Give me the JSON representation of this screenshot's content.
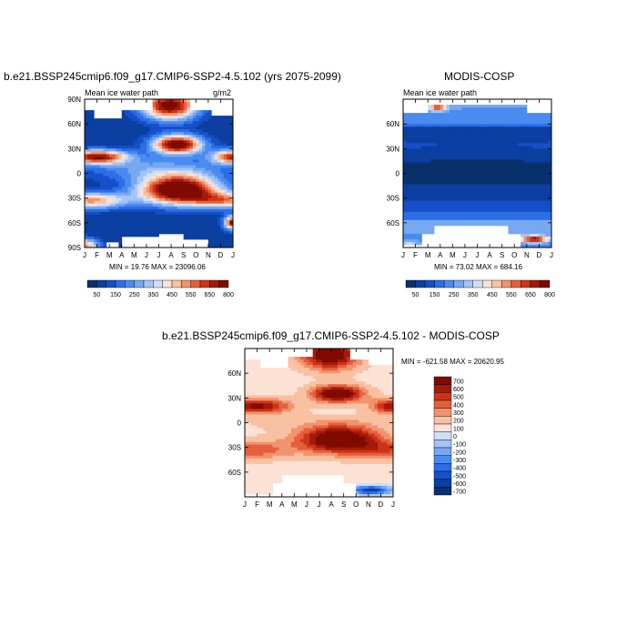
{
  "colors": {
    "palette": [
      "#08306b",
      "#0b3fa0",
      "#1450c8",
      "#2b6ee8",
      "#4a8bf0",
      "#77a8f2",
      "#a4c4f5",
      "#cfdffa",
      "#fbe2d4",
      "#f7c1a2",
      "#f2936d",
      "#e65f3d",
      "#cc3418",
      "#a31a08",
      "#7f0a00"
    ]
  },
  "chart_data": [
    {
      "type": "heatmap",
      "title": "b.e21.BSSP245cmip6.f09_g17.CMIP6-SSP2-4.5.102 (yrs 2075-2099)",
      "subtitle_left": "Mean ice water path",
      "subtitle_right": "g/m2",
      "x_ticks": [
        "J",
        "F",
        "M",
        "A",
        "M",
        "J",
        "J",
        "A",
        "S",
        "O",
        "N",
        "D",
        "J"
      ],
      "y_ticks": [
        "90S",
        "60S",
        "30S",
        "0",
        "30N",
        "60N",
        "90N"
      ],
      "ylim": [
        -90,
        90
      ],
      "stats": "MIN =  19.76 MAX = 23096.06",
      "colorbar_ticks": [
        "50",
        "150",
        "250",
        "350",
        "450",
        "550",
        "650",
        "800"
      ],
      "blank_regions": [
        {
          "x": [
            0.0,
            1.0
          ],
          "lat": [
            78,
            90
          ]
        },
        {
          "x": [
            0.75,
            3.0
          ],
          "lat": [
            66,
            90
          ]
        },
        {
          "x": [
            3.0,
            5.4
          ],
          "lat": [
            78,
            90
          ]
        },
        {
          "x": [
            8.4,
            10.2
          ],
          "lat": [
            78,
            90
          ]
        },
        {
          "x": [
            10.2,
            12.0
          ],
          "lat": [
            70,
            90
          ]
        },
        {
          "x": [
            1.8,
            2.8
          ],
          "lat": [
            -90,
            -84
          ]
        },
        {
          "x": [
            3.0,
            6.0
          ],
          "lat": [
            -90,
            -76
          ]
        },
        {
          "x": [
            6.0,
            8.0
          ],
          "lat": [
            -90,
            -72
          ]
        },
        {
          "x": [
            8.0,
            10.0
          ],
          "lat": [
            -90,
            -80
          ]
        }
      ],
      "features": [
        {
          "x": 6.9,
          "lat": 82,
          "sx": 1.6,
          "sy": 12,
          "v": 760
        },
        {
          "x": 7.5,
          "lat": 35,
          "sx": 1.4,
          "sy": 8,
          "v": 820
        },
        {
          "x": 1.0,
          "lat": 20,
          "sx": 1.8,
          "sy": 6,
          "v": 700
        },
        {
          "x": 12.0,
          "lat": 20,
          "sx": 1.2,
          "sy": 6,
          "v": 650
        },
        {
          "x": 7.6,
          "lat": -20,
          "sx": 2.2,
          "sy": 12,
          "v": 900
        },
        {
          "x": 0.5,
          "lat": -33,
          "sx": 2.2,
          "sy": 7,
          "v": 520
        },
        {
          "x": 11.6,
          "lat": -33,
          "sx": 2.0,
          "sy": 7,
          "v": 480
        },
        {
          "x": 6.0,
          "lat": 5,
          "sx": 4.0,
          "sy": 10,
          "v": 260
        },
        {
          "x": 0.0,
          "lat": -88,
          "sx": 0.8,
          "sy": 6,
          "v": 520
        },
        {
          "x": 12.0,
          "lat": -60,
          "sx": 0.5,
          "sy": 6,
          "v": 700
        }
      ],
      "base": 60
    },
    {
      "type": "heatmap",
      "title": "MODIS-COSP",
      "subtitle_left": "Mean ice water path",
      "subtitle_right": "",
      "x_ticks": [
        "J",
        "F",
        "M",
        "A",
        "M",
        "J",
        "J",
        "A",
        "S",
        "O",
        "N",
        "D",
        "J"
      ],
      "y_ticks": [
        "60S",
        "30S",
        "0",
        "30N",
        "60N"
      ],
      "ylim": [
        -90,
        90
      ],
      "stats": "MIN =  73.02 MAX = 684.16",
      "colorbar_ticks": [
        "50",
        "150",
        "250",
        "350",
        "450",
        "550",
        "650",
        "800"
      ],
      "blank_regions": [
        {
          "x": [
            0.0,
            2.0
          ],
          "lat": [
            75,
            90
          ]
        },
        {
          "x": [
            2.0,
            10.0
          ],
          "lat": [
            82,
            90
          ]
        },
        {
          "x": [
            10.0,
            12.0
          ],
          "lat": [
            72,
            90
          ]
        },
        {
          "x": [
            2.4,
            8.4
          ],
          "lat": [
            -90,
            -62
          ]
        },
        {
          "x": [
            1.6,
            2.4
          ],
          "lat": [
            -90,
            -72
          ]
        },
        {
          "x": [
            8.4,
            9.4
          ],
          "lat": [
            -90,
            -72
          ]
        },
        {
          "x": [
            0.0,
            1.6
          ],
          "lat": [
            -90,
            -86
          ]
        }
      ],
      "features": [
        {
          "x": 2.8,
          "lat": 80,
          "sx": 0.5,
          "sy": 3,
          "v": 600
        },
        {
          "x": 10.6,
          "lat": -80,
          "sx": 0.8,
          "sy": 3,
          "v": 700
        },
        {
          "x": 6.0,
          "lat": 10,
          "sx": 12.0,
          "sy": 15,
          "v": 80
        },
        {
          "x": 0.5,
          "lat": -85,
          "sx": 0.6,
          "sy": 3,
          "v": 350
        }
      ],
      "base": 200
    },
    {
      "type": "heatmap",
      "title": "b.e21.BSSP245cmip6.f09_g17.CMIP6-SSP2-4.5.102 - MODIS-COSP",
      "x_ticks": [
        "J",
        "F",
        "M",
        "A",
        "M",
        "J",
        "J",
        "A",
        "S",
        "O",
        "N",
        "D",
        "J"
      ],
      "y_ticks": [
        "60S",
        "30S",
        "0",
        "30N",
        "60N"
      ],
      "ylim": [
        -90,
        90
      ],
      "stats": "MIN = -621.58 MAX = 20620.95",
      "colorbar_ticks": [
        "700",
        "600",
        "500",
        "400",
        "300",
        "200",
        "100",
        "0",
        "-100",
        "-200",
        "-300",
        "-400",
        "-500",
        "-600",
        "-700"
      ],
      "blank_regions": [
        {
          "x": [
            0.0,
            1.2
          ],
          "lat": [
            78,
            90
          ]
        },
        {
          "x": [
            1.2,
            3.6
          ],
          "lat": [
            68,
            90
          ]
        },
        {
          "x": [
            3.6,
            5.4
          ],
          "lat": [
            80,
            90
          ]
        },
        {
          "x": [
            8.6,
            10.0
          ],
          "lat": [
            78,
            90
          ]
        },
        {
          "x": [
            10.0,
            12.0
          ],
          "lat": [
            70,
            90
          ]
        },
        {
          "x": [
            3.0,
            8.0
          ],
          "lat": [
            -90,
            -62
          ]
        },
        {
          "x": [
            2.2,
            3.0
          ],
          "lat": [
            -90,
            -74
          ]
        },
        {
          "x": [
            8.0,
            9.0
          ],
          "lat": [
            -90,
            -74
          ]
        },
        {
          "x": [
            0.0,
            2.2
          ],
          "lat": [
            -90,
            -86
          ]
        }
      ],
      "features": [
        {
          "x": 6.9,
          "lat": 82,
          "sx": 1.6,
          "sy": 12,
          "v": 760
        },
        {
          "x": 7.5,
          "lat": 35,
          "sx": 1.4,
          "sy": 7,
          "v": 820
        },
        {
          "x": 1.0,
          "lat": 20,
          "sx": 1.8,
          "sy": 6,
          "v": 650
        },
        {
          "x": 12.0,
          "lat": 20,
          "sx": 1.2,
          "sy": 6,
          "v": 600
        },
        {
          "x": 7.6,
          "lat": -20,
          "sx": 2.2,
          "sy": 11,
          "v": 850
        },
        {
          "x": 0.5,
          "lat": -33,
          "sx": 2.4,
          "sy": 8,
          "v": 380
        },
        {
          "x": 11.6,
          "lat": -33,
          "sx": 2.2,
          "sy": 8,
          "v": 360
        },
        {
          "x": 10.2,
          "lat": -82,
          "sx": 1.2,
          "sy": 4,
          "v": -650
        },
        {
          "x": 6.0,
          "lat": 0,
          "sx": 6.0,
          "sy": 8,
          "v": 120
        }
      ],
      "base": 60
    }
  ]
}
